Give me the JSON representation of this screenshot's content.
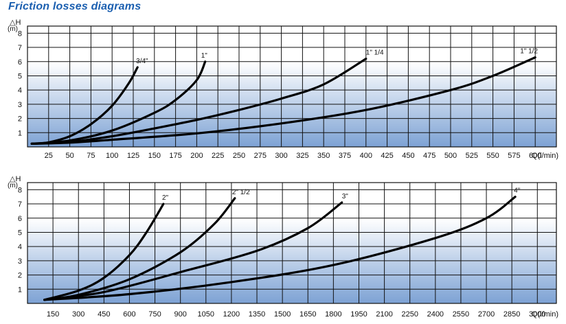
{
  "title": "Friction losses diagrams",
  "colors": {
    "title": "#1b5fb0",
    "gradient_top": "#ffffff",
    "gradient_bottom": "#7da2d4",
    "grid": "#111111",
    "curve": "#000000"
  },
  "chart_data": [
    {
      "type": "line",
      "title": "",
      "ylabel_top": "△H",
      "ylabel_unit": "(m)",
      "xlabel": "Q(l/min)",
      "xlim": [
        0,
        625
      ],
      "ylim": [
        0,
        8.5
      ],
      "x_ticks": [
        25,
        50,
        75,
        100,
        125,
        150,
        175,
        200,
        225,
        250,
        275,
        300,
        325,
        350,
        375,
        400,
        425,
        450,
        475,
        500,
        525,
        550,
        575,
        600
      ],
      "y_ticks": [
        1,
        2,
        3,
        4,
        5,
        6,
        7,
        8
      ],
      "grid": true,
      "series": [
        {
          "name": "3/4\"",
          "points": [
            [
              5,
              0.22
            ],
            [
              25,
              0.32
            ],
            [
              50,
              0.75
            ],
            [
              75,
              1.6
            ],
            [
              100,
              2.9
            ],
            [
              120,
              4.5
            ],
            [
              130,
              5.6
            ]
          ]
        },
        {
          "name": "1\"",
          "points": [
            [
              5,
              0.22
            ],
            [
              50,
              0.45
            ],
            [
              100,
              1.15
            ],
            [
              150,
              2.4
            ],
            [
              175,
              3.3
            ],
            [
              200,
              4.7
            ],
            [
              210,
              6.0
            ]
          ]
        },
        {
          "name": "1\" 1/4",
          "points": [
            [
              5,
              0.22
            ],
            [
              50,
              0.35
            ],
            [
              100,
              0.75
            ],
            [
              150,
              1.3
            ],
            [
              200,
              1.9
            ],
            [
              250,
              2.6
            ],
            [
              300,
              3.4
            ],
            [
              350,
              4.4
            ],
            [
              400,
              6.2
            ]
          ]
        },
        {
          "name": "1\" 1/2",
          "points": [
            [
              5,
              0.22
            ],
            [
              50,
              0.3
            ],
            [
              100,
              0.5
            ],
            [
              200,
              0.95
            ],
            [
              300,
              1.65
            ],
            [
              400,
              2.6
            ],
            [
              500,
              4.0
            ],
            [
              550,
              5.0
            ],
            [
              600,
              6.3
            ]
          ]
        }
      ]
    },
    {
      "type": "line",
      "title": "",
      "ylabel_top": "△H",
      "ylabel_unit": "(m)",
      "xlabel": "Q(l/min)",
      "xlim": [
        0,
        3112
      ],
      "ylim": [
        0,
        8.5
      ],
      "x_ticks": [
        150,
        300,
        450,
        600,
        750,
        900,
        1050,
        1200,
        1350,
        1500,
        1650,
        1800,
        1950,
        2100,
        2250,
        2400,
        2550,
        2700,
        2850,
        3000
      ],
      "y_ticks": [
        1,
        2,
        3,
        4,
        5,
        6,
        7,
        8
      ],
      "grid": true,
      "series": [
        {
          "name": "2\"",
          "points": [
            [
              100,
              0.25
            ],
            [
              300,
              0.9
            ],
            [
              450,
              1.8
            ],
            [
              600,
              3.4
            ],
            [
              700,
              5.0
            ],
            [
              800,
              7.0
            ]
          ]
        },
        {
          "name": "2\" 1/2",
          "points": [
            [
              100,
              0.25
            ],
            [
              300,
              0.6
            ],
            [
              600,
              1.7
            ],
            [
              900,
              3.6
            ],
            [
              1100,
              5.6
            ],
            [
              1220,
              7.4
            ]
          ]
        },
        {
          "name": "3\"",
          "points": [
            [
              100,
              0.25
            ],
            [
              450,
              0.8
            ],
            [
              900,
              2.2
            ],
            [
              1350,
              3.7
            ],
            [
              1650,
              5.3
            ],
            [
              1850,
              7.1
            ]
          ]
        },
        {
          "name": "4\"",
          "points": [
            [
              100,
              0.25
            ],
            [
              600,
              0.65
            ],
            [
              1200,
              1.5
            ],
            [
              1800,
              2.7
            ],
            [
              2400,
              4.6
            ],
            [
              2700,
              6.0
            ],
            [
              2870,
              7.5
            ]
          ]
        }
      ]
    }
  ]
}
